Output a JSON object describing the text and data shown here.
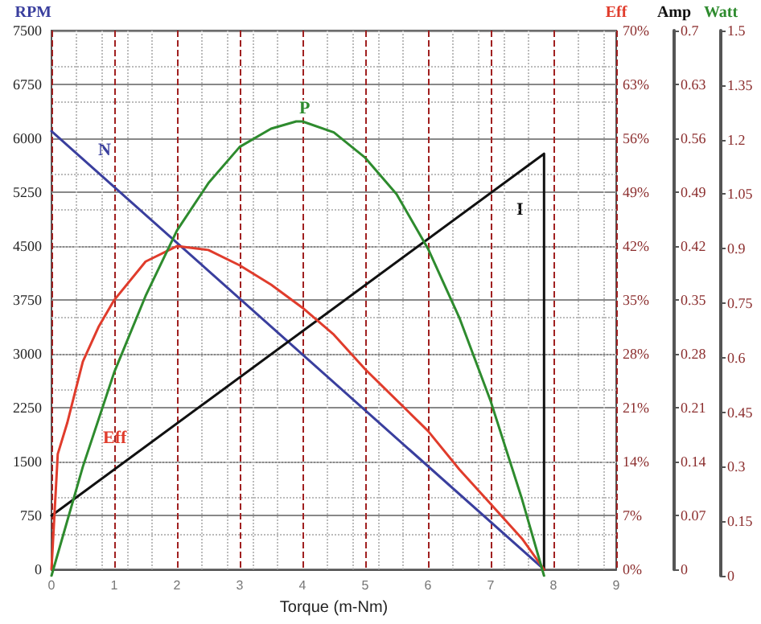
{
  "chart_data": [
    {
      "type": "line",
      "xlabel": "Torque (m-Nm)",
      "ylabel": "RPM",
      "y2label": "Eff",
      "y3label": "Amp",
      "xlim": [
        0,
        9
      ],
      "xticks": [
        0,
        1,
        2,
        3,
        4,
        5,
        6,
        7,
        8,
        9
      ],
      "ylim": [
        0,
        7500
      ],
      "yticks": [
        0,
        750,
        1500,
        2250,
        3000,
        3750,
        4500,
        5250,
        6000,
        6750,
        7500
      ],
      "y2lim": [
        0,
        70
      ],
      "y2ticks": [
        {
          "value": 0,
          "label": "0%"
        },
        {
          "value": 7,
          "label": "7%"
        },
        {
          "value": 14,
          "label": "14%"
        },
        {
          "value": 21,
          "label": "21%"
        },
        {
          "value": 28,
          "label": "28%"
        },
        {
          "value": 35,
          "label": "35%"
        },
        {
          "value": 42,
          "label": "42%"
        },
        {
          "value": 49,
          "label": "49%"
        },
        {
          "value": 56,
          "label": "56%"
        },
        {
          "value": 63,
          "label": "63%"
        },
        {
          "value": 70,
          "label": "70%"
        }
      ],
      "y3lim": [
        0,
        0.7
      ],
      "y3ticks": [
        0,
        0.07,
        0.14,
        0.21,
        0.28,
        0.35,
        0.42,
        0.49,
        0.56,
        0.63,
        0.7
      ],
      "grid": true,
      "marker": "none",
      "line_style": "solid",
      "series": [
        {
          "color": "#3a3f9e",
          "x": [
            0,
            7.85
          ],
          "values": [
            6100,
            0
          ]
        },
        {
          "color": "#111111",
          "axis": "y3",
          "x": [
            0,
            7.85,
            7.85
          ],
          "values": [
            0.07,
            0.54,
            0
          ]
        },
        {
          "color": "#e03c2c",
          "axis": "y2",
          "x": [
            0,
            0.1,
            0.25,
            0.5,
            0.75,
            1,
            1.5,
            2,
            2.5,
            3,
            3.5,
            4,
            4.5,
            5,
            5.5,
            6,
            6.5,
            7,
            7.5,
            7.85
          ],
          "values": [
            0,
            15,
            19,
            27,
            31.5,
            35,
            40,
            42,
            41.5,
            39.5,
            37,
            34,
            30.5,
            26,
            22,
            18,
            13,
            8.5,
            4,
            0
          ]
        }
      ],
      "annotations": [
        "N",
        "I",
        "Eff"
      ]
    },
    {
      "type": "line",
      "ylabel": "Watt",
      "tick_labels": "y",
      "marker": "none",
      "line_style": "solid",
      "xlim": [
        0,
        9
      ],
      "ylim": [
        0,
        1.5
      ],
      "yticks": [
        0,
        0.15,
        0.3,
        0.45,
        0.6,
        0.75,
        0.9,
        1.05,
        1.2,
        1.35,
        1.5
      ],
      "series": [
        {
          "color": "#2e8b2e",
          "x": [
            0,
            0.5,
            1,
            1.5,
            2,
            2.5,
            3,
            3.5,
            3.9,
            4,
            4.5,
            5,
            5.5,
            6,
            6.5,
            7,
            7.5,
            7.85
          ],
          "values": [
            0,
            0.3,
            0.56,
            0.77,
            0.95,
            1.08,
            1.18,
            1.23,
            1.25,
            1.25,
            1.22,
            1.15,
            1.05,
            0.9,
            0.71,
            0.48,
            0.21,
            0
          ]
        }
      ],
      "annotations": [
        "P"
      ]
    }
  ]
}
